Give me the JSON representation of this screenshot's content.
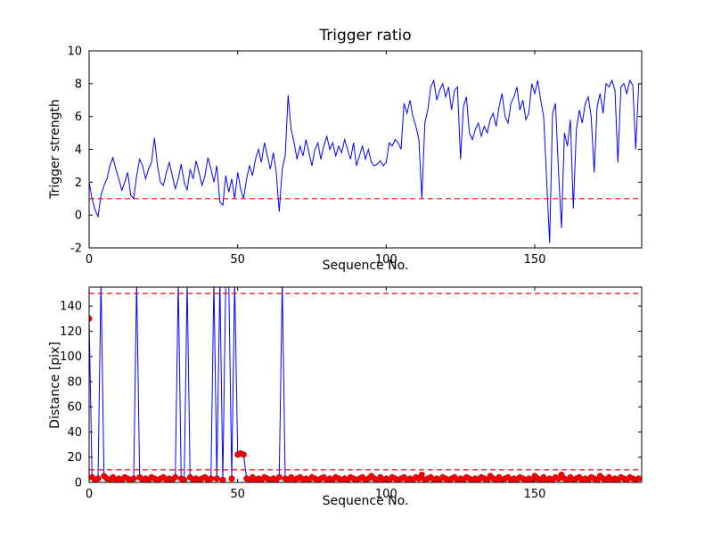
{
  "figure": {
    "background": "#ffffff",
    "axis_color": "#000000",
    "line_color": "#0000ff",
    "threshold_color": "#ff0000",
    "marker_color": "#ff0000"
  },
  "chart_data": [
    {
      "type": "line",
      "title": "Trigger ratio",
      "xlabel": "Sequence No.",
      "ylabel": "Trigger strength",
      "xlim": [
        0,
        186
      ],
      "ylim": [
        -2,
        10
      ],
      "xticks": [
        0,
        50,
        100,
        150
      ],
      "yticks": [
        -2,
        0,
        2,
        4,
        6,
        8,
        10
      ],
      "grid": false,
      "legend": "none",
      "threshold_lines": [
        1
      ],
      "series": [
        {
          "name": "trigger-strength",
          "color": "#0000ff",
          "marker": "none",
          "values": [
            2.0,
            1.0,
            0.3,
            -0.1,
            1.2,
            1.8,
            2.2,
            3.0,
            3.5,
            2.8,
            2.2,
            1.5,
            2.0,
            2.6,
            1.2,
            1.0,
            2.4,
            3.4,
            3.0,
            2.2,
            2.8,
            3.2,
            4.7,
            3.0,
            2.0,
            1.8,
            2.6,
            3.2,
            2.4,
            1.6,
            2.2,
            3.1,
            2.0,
            1.5,
            2.8,
            2.2,
            3.3,
            2.6,
            1.8,
            2.4,
            3.5,
            2.8,
            2.0,
            3.0,
            0.8,
            0.6,
            2.4,
            1.4,
            2.2,
            1.0,
            2.6,
            1.6,
            1.0,
            2.2,
            3.0,
            2.4,
            3.4,
            4.0,
            3.2,
            4.4,
            3.6,
            2.8,
            3.8,
            2.6,
            0.2,
            2.8,
            3.6,
            7.3,
            5.2,
            4.4,
            3.4,
            4.2,
            3.6,
            4.6,
            3.8,
            3.0,
            4.0,
            4.4,
            3.4,
            4.2,
            4.8,
            4.0,
            4.4,
            3.6,
            4.2,
            3.8,
            4.6,
            4.0,
            3.4,
            4.4,
            3.0,
            3.6,
            4.2,
            3.4,
            4.0,
            3.2,
            3.0,
            3.1,
            3.3,
            3.0,
            3.2,
            4.4,
            4.2,
            4.6,
            4.4,
            4.0,
            6.8,
            6.2,
            7.0,
            6.0,
            5.4,
            4.6,
            1.0,
            5.6,
            6.4,
            7.8,
            8.2,
            7.0,
            7.6,
            8.0,
            7.2,
            7.8,
            6.4,
            7.6,
            7.8,
            3.4,
            6.6,
            7.2,
            5.0,
            4.6,
            5.2,
            5.6,
            4.8,
            5.4,
            5.0,
            5.8,
            6.2,
            5.4,
            6.6,
            7.4,
            6.0,
            5.6,
            6.8,
            7.2,
            7.8,
            6.4,
            7.0,
            5.8,
            6.2,
            8.0,
            7.4,
            8.2,
            7.0,
            6.0,
            2.2,
            -1.7,
            6.2,
            6.8,
            2.6,
            -0.8,
            5.0,
            4.2,
            5.8,
            0.4,
            5.2,
            6.4,
            5.6,
            6.8,
            7.2,
            6.0,
            2.6,
            6.6,
            7.4,
            6.2,
            8.0,
            7.8,
            8.2,
            7.6,
            3.2,
            7.8,
            8.0,
            7.4,
            8.2,
            7.9,
            4.0,
            8.0
          ]
        }
      ]
    },
    {
      "type": "line",
      "title": "",
      "xlabel": "Sequence No.",
      "ylabel": "Distance [pix]",
      "xlim": [
        0,
        186
      ],
      "ylim": [
        0,
        155
      ],
      "xticks": [
        0,
        50,
        100,
        150
      ],
      "yticks": [
        0,
        20,
        40,
        60,
        80,
        100,
        120,
        140
      ],
      "grid": false,
      "legend": "none",
      "threshold_lines": [
        10,
        150
      ],
      "series": [
        {
          "name": "distance",
          "color": "#0000ff",
          "marker": "o",
          "marker_color": "#ff0000",
          "values": [
            130,
            4,
            2,
            3,
            160,
            5,
            3,
            2,
            4,
            2,
            3,
            2,
            4,
            3,
            2,
            3,
            160,
            4,
            2,
            3,
            2,
            4,
            3,
            2,
            3,
            4,
            2,
            3,
            2,
            4,
            160,
            3,
            2,
            160,
            4,
            2,
            3,
            2,
            3,
            4,
            2,
            3,
            160,
            3,
            160,
            2,
            160,
            160,
            3,
            160,
            22,
            23,
            22,
            3,
            2,
            4,
            2,
            3,
            2,
            4,
            3,
            2,
            3,
            2,
            4,
            160,
            3,
            2,
            4,
            2,
            3,
            4,
            2,
            3,
            2,
            4,
            3,
            2,
            3,
            4,
            2,
            3,
            2,
            4,
            3,
            2,
            3,
            2,
            4,
            3,
            2,
            3,
            4,
            2,
            3,
            5,
            3,
            2,
            4,
            2,
            3,
            2,
            4,
            3,
            2,
            3,
            4,
            2,
            3,
            2,
            4,
            3,
            6,
            2,
            3,
            4,
            2,
            3,
            2,
            4,
            3,
            2,
            3,
            4,
            2,
            3,
            2,
            4,
            3,
            2,
            3,
            2,
            4,
            3,
            2,
            5,
            3,
            2,
            4,
            2,
            3,
            4,
            2,
            3,
            2,
            4,
            3,
            2,
            3,
            2,
            5,
            3,
            2,
            4,
            2,
            3,
            2,
            4,
            3,
            6,
            3,
            2,
            4,
            2,
            3,
            4,
            2,
            3,
            2,
            4,
            3,
            2,
            5,
            3,
            2,
            4,
            2,
            3,
            2,
            4,
            3,
            2,
            4,
            3,
            2,
            3
          ]
        }
      ]
    }
  ]
}
